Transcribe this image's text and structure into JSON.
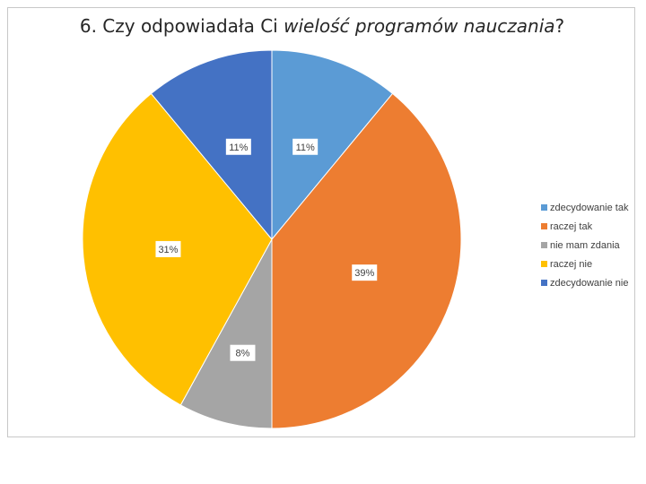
{
  "chart_data": {
    "type": "pie",
    "title": {
      "prefix": "6. Czy odpowiadała Ci ",
      "emphasis": "wielość programów nauczania",
      "suffix": "?"
    },
    "categories": [
      "zdecydowanie tak",
      "raczej tak",
      "nie mam zdania",
      "raczej nie",
      "zdecydowanie nie"
    ],
    "values": [
      11,
      39,
      8,
      31,
      11
    ],
    "labels": [
      "11%",
      "39%",
      "8%",
      "31%",
      "11%"
    ],
    "colors": [
      "#5B9BD5",
      "#ED7D31",
      "#A5A5A5",
      "#FFC000",
      "#4472C4"
    ],
    "legend_position": "right",
    "start_angle_deg": 0,
    "direction": "clockwise"
  }
}
